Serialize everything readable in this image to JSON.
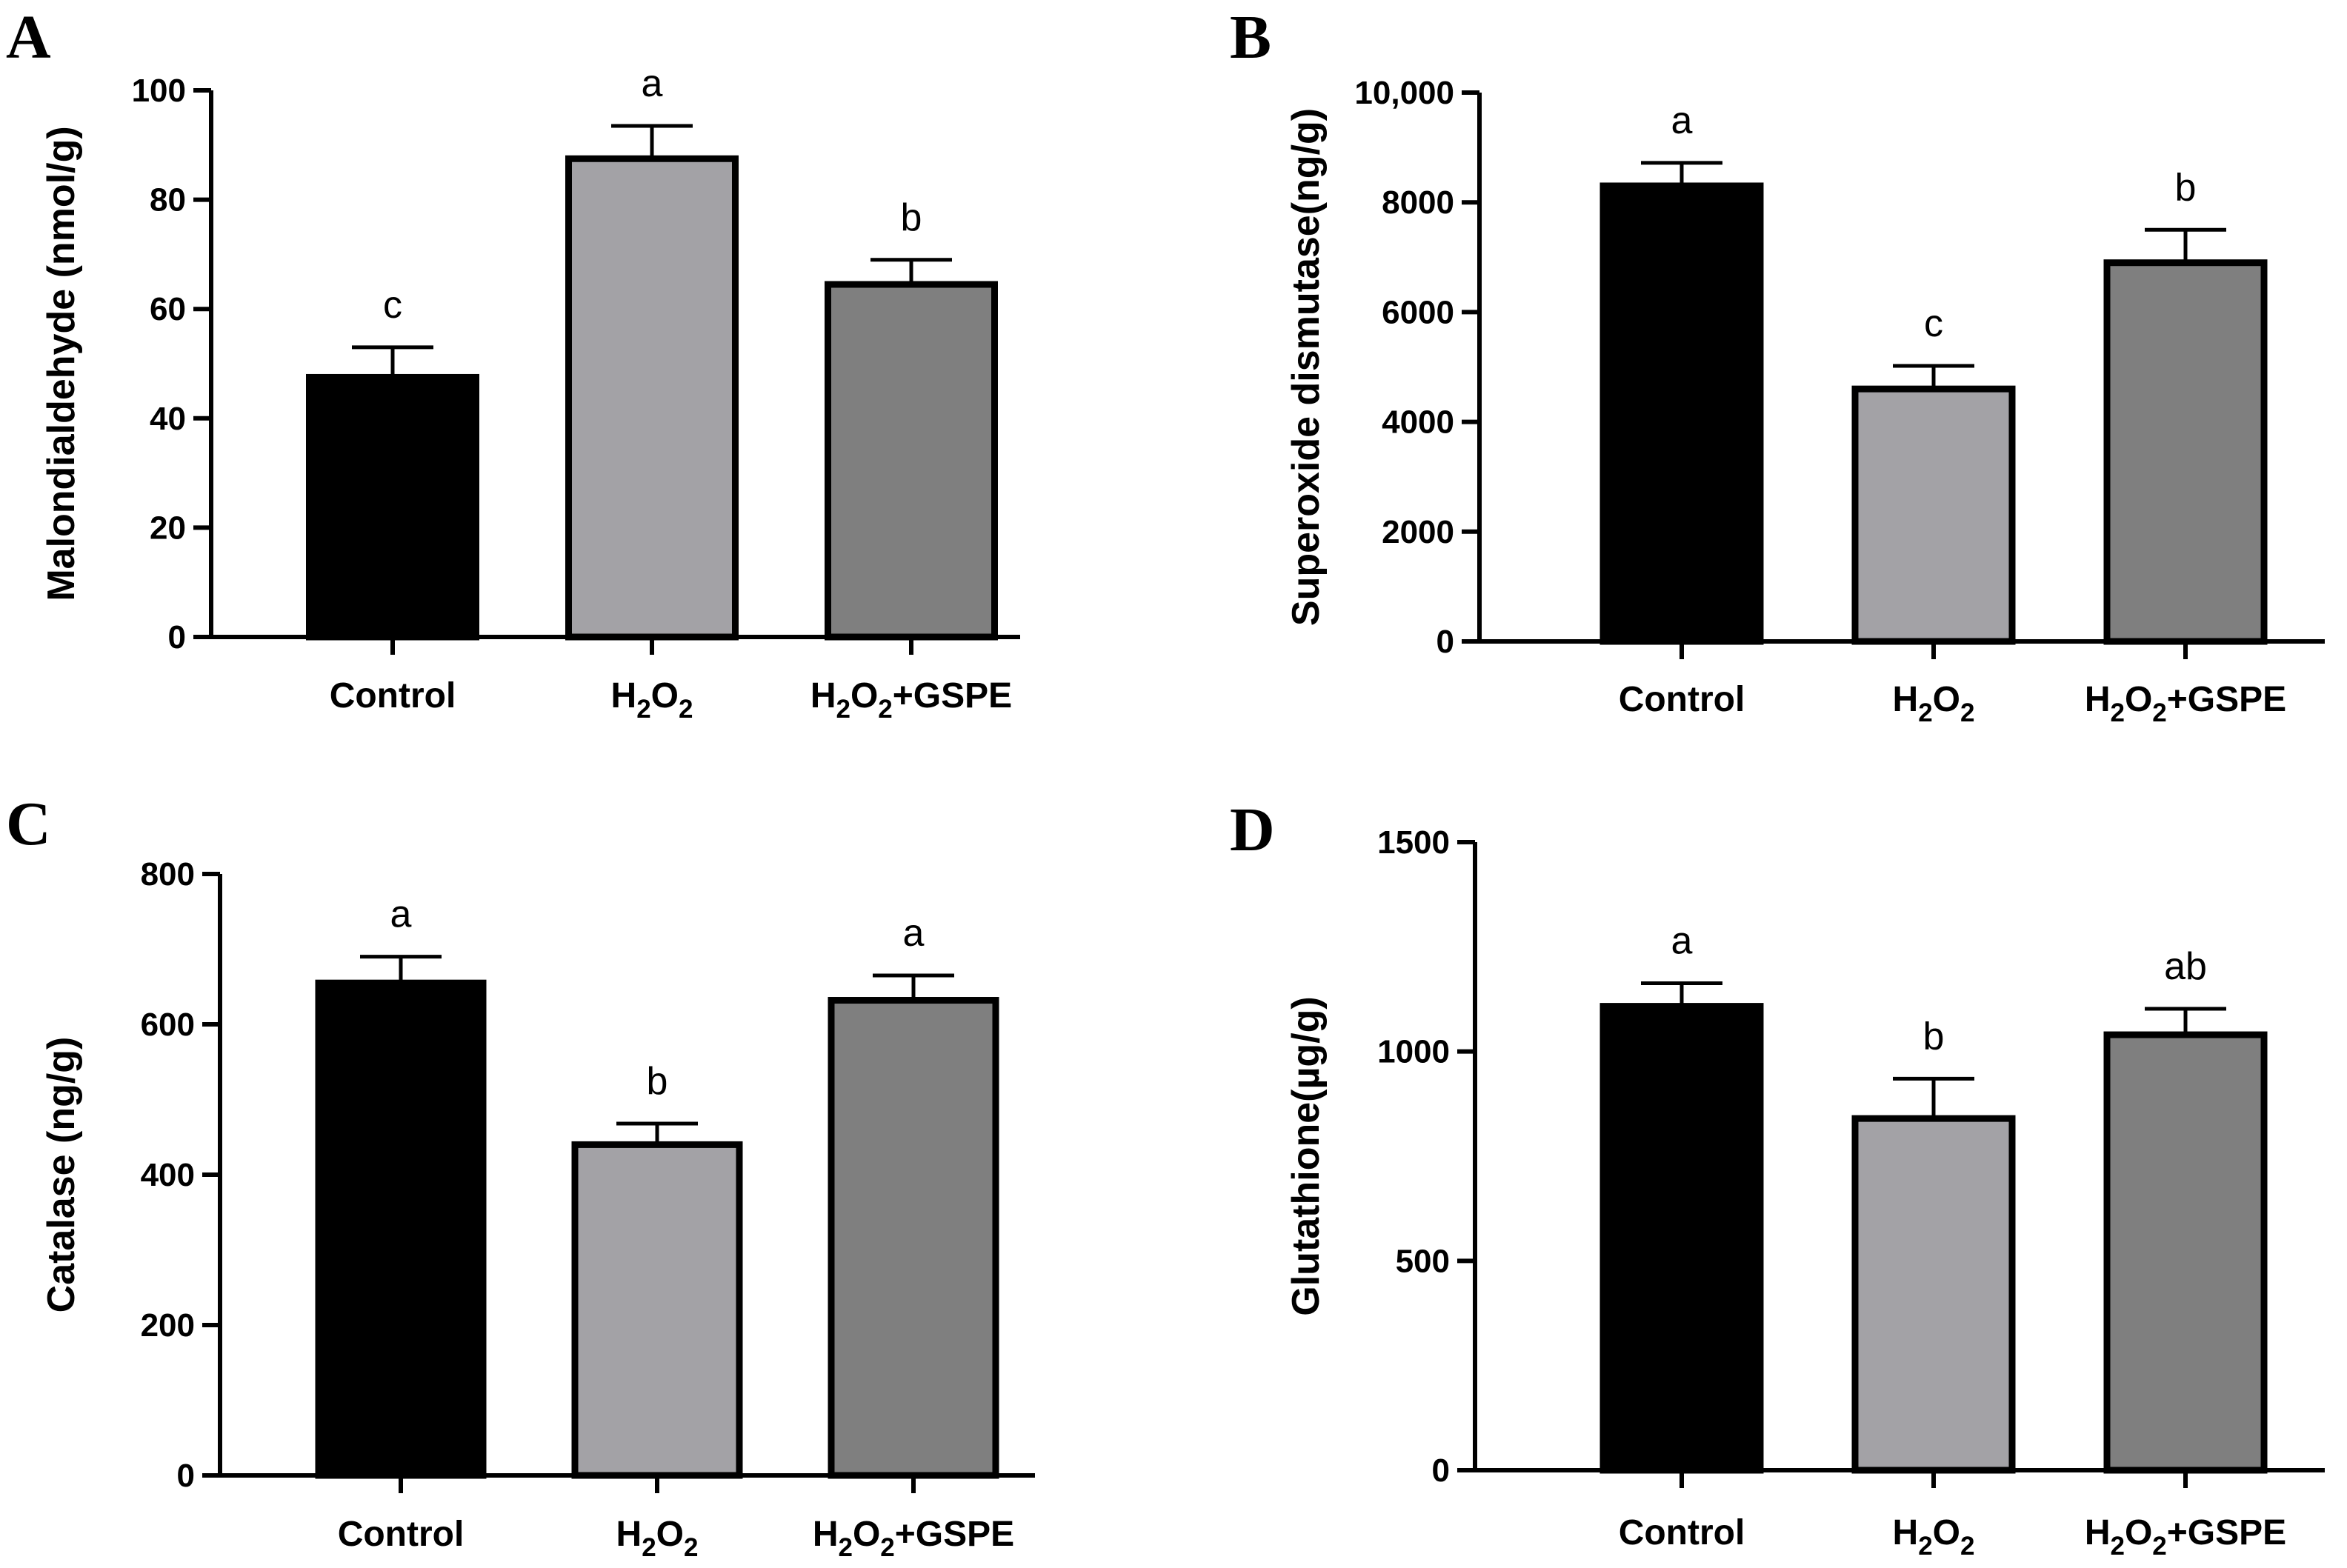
{
  "chart_data": [
    {
      "panel": "A",
      "type": "bar",
      "ylabel": "Malondialdehyde (nmol/g)",
      "categories": [
        "Control",
        "H2O2",
        "H2O2+GSPE"
      ],
      "values": [
        47.5,
        87.5,
        64.5
      ],
      "errors": [
        5.5,
        6.0,
        4.5
      ],
      "significance": [
        "c",
        "a",
        "b"
      ],
      "ylim": [
        0,
        100
      ],
      "yticks": [
        0,
        20,
        40,
        60,
        80,
        100
      ],
      "ytick_labels": [
        "0",
        "20",
        "40",
        "60",
        "80",
        "100"
      ]
    },
    {
      "panel": "B",
      "type": "bar",
      "ylabel": "Superoxide dismutase(ng/g)",
      "categories": [
        "Control",
        "H2O2",
        "H2O2+GSPE"
      ],
      "values": [
        8300,
        4600,
        6900
      ],
      "errors": [
        420,
        420,
        600
      ],
      "significance": [
        "a",
        "c",
        "b"
      ],
      "ylim": [
        0,
        10000
      ],
      "yticks": [
        0,
        2000,
        4000,
        6000,
        8000,
        10000
      ],
      "ytick_labels": [
        "0",
        "2000",
        "4000",
        "6000",
        "8000",
        "10,000"
      ]
    },
    {
      "panel": "C",
      "type": "bar",
      "ylabel": "Catalase (ng/g)",
      "categories": [
        "Control",
        "H2O2",
        "H2O2+GSPE"
      ],
      "values": [
        655,
        440,
        632
      ],
      "errors": [
        35,
        28,
        33
      ],
      "significance": [
        "a",
        "b",
        "a"
      ],
      "ylim": [
        0,
        800
      ],
      "yticks": [
        0,
        200,
        400,
        600,
        800
      ],
      "ytick_labels": [
        "0",
        "200",
        "400",
        "600",
        "800"
      ]
    },
    {
      "panel": "D",
      "type": "bar",
      "ylabel": "Glutathione(µg/g)",
      "categories": [
        "Control",
        "H2O2",
        "H2O2+GSPE"
      ],
      "values": [
        1108,
        840,
        1040
      ],
      "errors": [
        55,
        95,
        62
      ],
      "significance": [
        "a",
        "b",
        "ab"
      ],
      "ylim": [
        0,
        1500
      ],
      "yticks": [
        0,
        500,
        1000,
        1500
      ],
      "ytick_labels": [
        "0",
        "500",
        "1000",
        "1500"
      ]
    }
  ],
  "colors": {
    "bars": [
      "#000000",
      "#a3a2a6",
      "#7f7f7f"
    ],
    "outline": "#000000"
  }
}
